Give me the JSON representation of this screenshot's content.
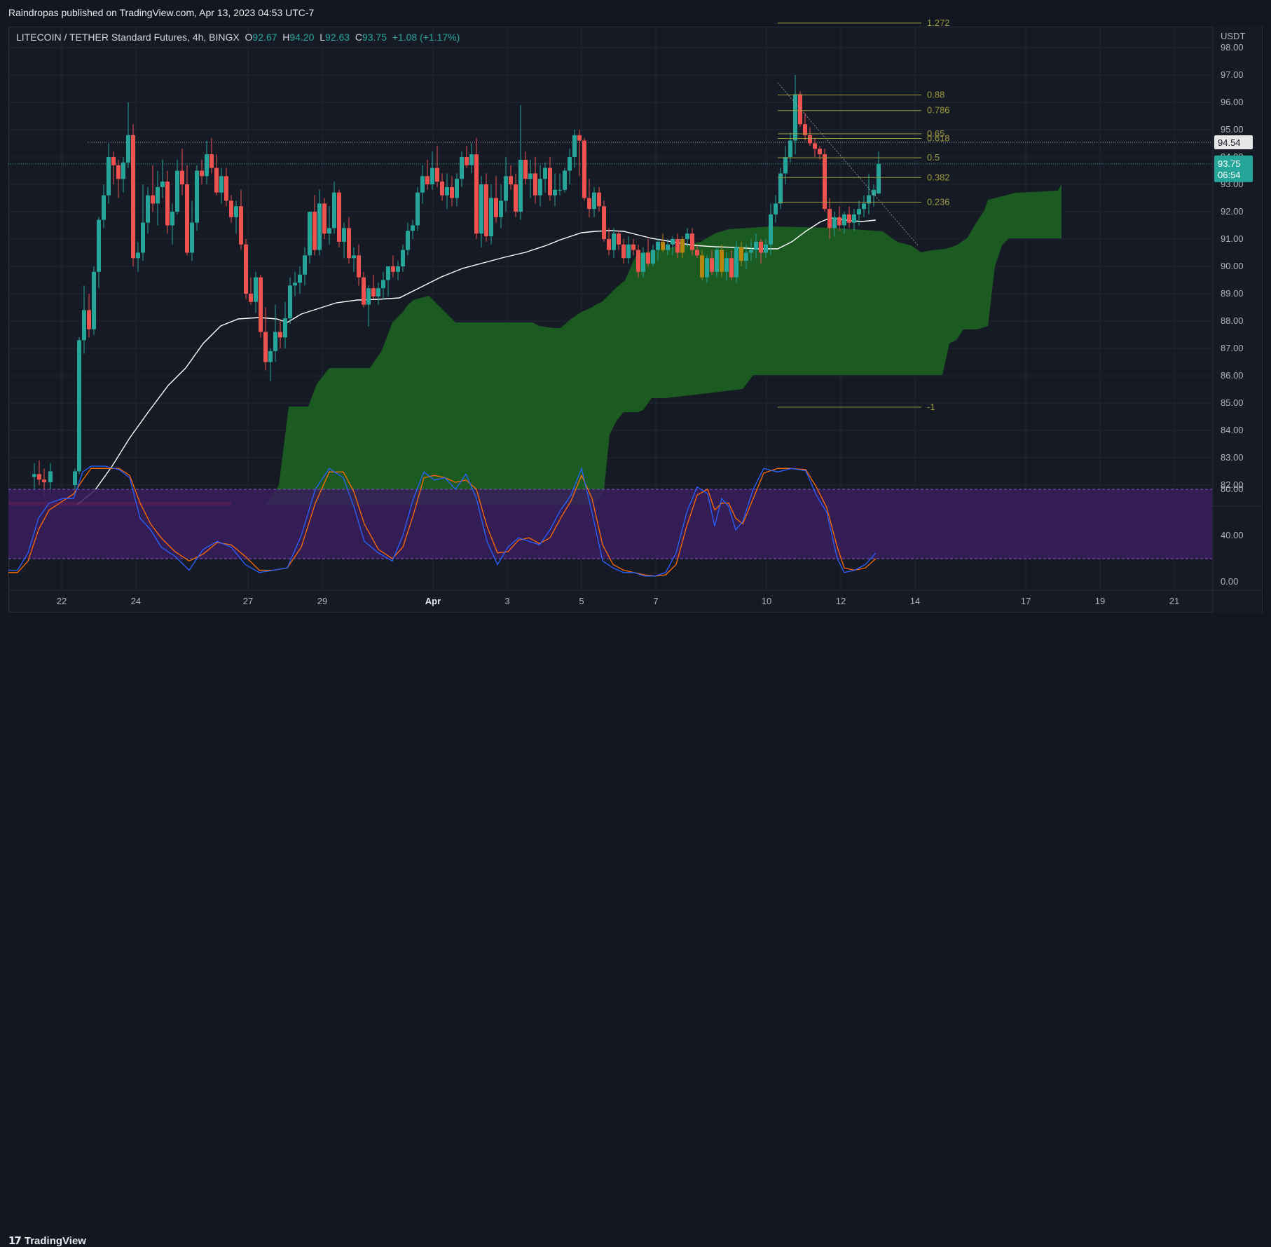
{
  "publisher_line": "Raindropas published on TradingView.com, Apr 13, 2023 04:53 UTC-7",
  "legend": {
    "symbol": "LITECOIN / TETHER Standard Futures, 4h, BINGX",
    "o_label": "O",
    "o_value": "92.67",
    "h_label": "H",
    "h_value": "94.20",
    "l_label": "L",
    "l_value": "92.63",
    "c_label": "C",
    "c_value": "93.75",
    "change": "+1.08 (+1.17%)"
  },
  "branding": "TradingView",
  "colors": {
    "bg": "#161a25",
    "up": "#26a69a",
    "down": "#ef5350",
    "neutral": "#b8860b",
    "cloud": "#1b5e20",
    "ma": "#ffffff",
    "fib": "#9d9a3a",
    "stoch_k": "#2962ff",
    "stoch_d": "#ff6d00",
    "stoch_band": "#3a1f5e"
  },
  "chart_data": {
    "type": "candlestick",
    "price_axis": {
      "currency": "USDT",
      "ticks": [
        "98.00",
        "97.00",
        "96.00",
        "95.00",
        "94.00",
        "93.00",
        "92.00",
        "91.00",
        "90.00",
        "89.00",
        "88.00",
        "87.00",
        "86.00",
        "85.00",
        "84.00",
        "83.00",
        "82.00"
      ],
      "ylim": [
        81.5,
        98.8
      ]
    },
    "price_markers": [
      {
        "label": "94.54",
        "price": 94.54,
        "style": "gray"
      },
      {
        "label": "93.75",
        "price": 93.75,
        "style": "last",
        "sub": "06:54"
      }
    ],
    "time_axis": {
      "ticks": [
        "22",
        "24",
        "27",
        "29",
        "Apr",
        "3",
        "5",
        "7",
        "10",
        "12",
        "14",
        "17",
        "19",
        "21"
      ]
    },
    "fib_levels": [
      {
        "label": "1.272",
        "price": 98.9
      },
      {
        "label": "0.88",
        "price": 96.27
      },
      {
        "label": "0.786",
        "price": 95.7
      },
      {
        "label": "0.65",
        "price": 94.85
      },
      {
        "label": "0.618",
        "price": 94.68
      },
      {
        "label": "0.5",
        "price": 93.97
      },
      {
        "label": "0.382",
        "price": 93.25
      },
      {
        "label": "0.236",
        "price": 92.35
      },
      {
        "label": "-1",
        "price": 84.85
      }
    ],
    "stochastic": {
      "ticks": [
        "80.00",
        "40.00",
        "0.00"
      ],
      "ylim": [
        0,
        100
      ],
      "upper_band": 80,
      "lower_band": 20
    }
  }
}
